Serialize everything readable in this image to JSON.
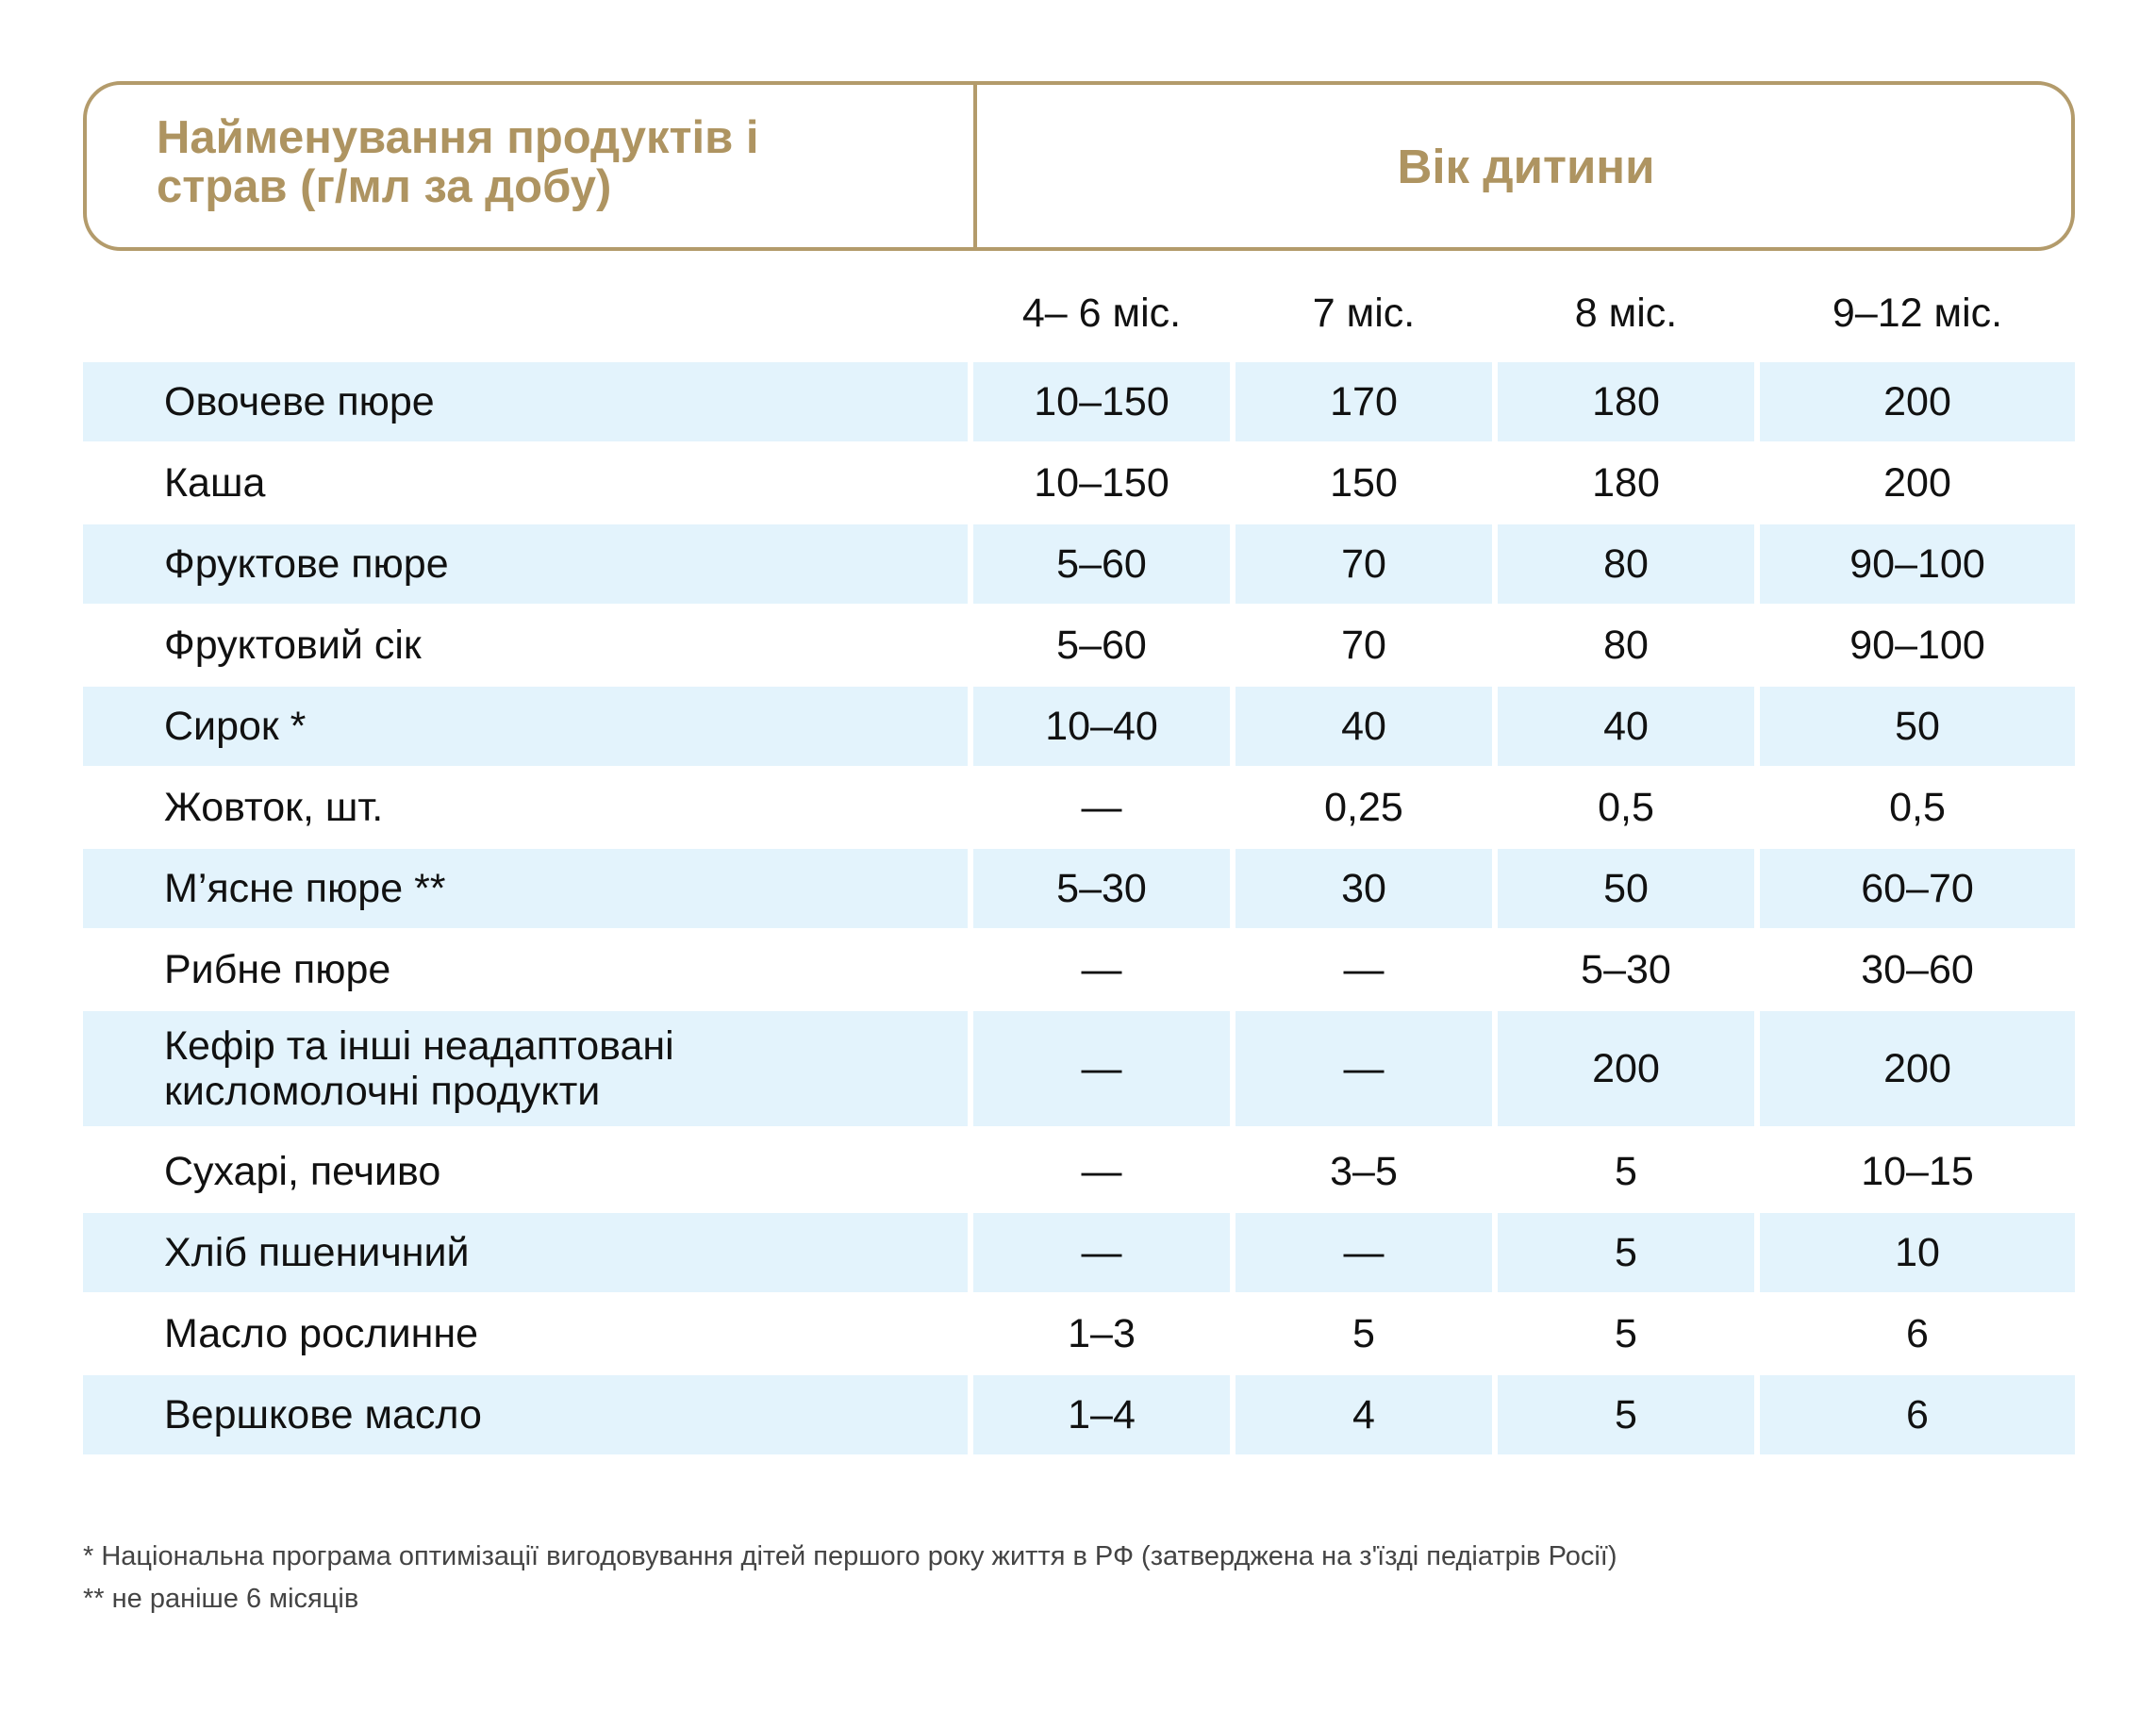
{
  "header": {
    "name_title_lines": [
      "Найменування продуктів і",
      "страв (г/мл за добу)"
    ],
    "age_title": "Вік дитини"
  },
  "columns": [
    "4– 6 міс.",
    "7 міс.",
    "8 міс.",
    "9–12 міс."
  ],
  "rows": [
    {
      "name": [
        "Овочеве пюре"
      ],
      "values": [
        "10–150",
        "170",
        "180",
        "200"
      ]
    },
    {
      "name": [
        "Каша"
      ],
      "values": [
        "10–150",
        "150",
        "180",
        "200"
      ]
    },
    {
      "name": [
        "Фруктове пюре"
      ],
      "values": [
        "5–60",
        "70",
        "80",
        "90–100"
      ]
    },
    {
      "name": [
        "Фруктовий сік"
      ],
      "values": [
        "5–60",
        "70",
        "80",
        "90–100"
      ]
    },
    {
      "name": [
        "Сирок *"
      ],
      "values": [
        "10–40",
        "40",
        "40",
        "50"
      ]
    },
    {
      "name": [
        "Жовток, шт."
      ],
      "values": [
        "—",
        "0,25",
        "0,5",
        "0,5"
      ]
    },
    {
      "name": [
        "М’ясне пюре **"
      ],
      "values": [
        "5–30",
        "30",
        "50",
        "60–70"
      ]
    },
    {
      "name": [
        "Рибне пюре"
      ],
      "values": [
        "—",
        "—",
        "5–30",
        "30–60"
      ]
    },
    {
      "name": [
        "Кефір та інші неадаптовані",
        "кисломолочні продукти"
      ],
      "values": [
        "—",
        "—",
        "200",
        "200"
      ]
    },
    {
      "name": [
        "Сухарі, печиво"
      ],
      "values": [
        "—",
        "3–5",
        "5",
        "10–15"
      ]
    },
    {
      "name": [
        "Хліб пшеничний"
      ],
      "values": [
        "—",
        "—",
        "5",
        "10"
      ]
    },
    {
      "name": [
        "Масло рослинне"
      ],
      "values": [
        "1–3",
        "5",
        "5",
        "6"
      ]
    },
    {
      "name": [
        "Вершкове масло"
      ],
      "values": [
        "1–4",
        "4",
        "5",
        "6"
      ]
    }
  ],
  "footnotes": [
    "* Національна програма оптимізації вигодовування дітей першого року життя в РФ (затверджена на з'їзді педіатрів Росії)",
    "** не раніше 6 місяців"
  ]
}
